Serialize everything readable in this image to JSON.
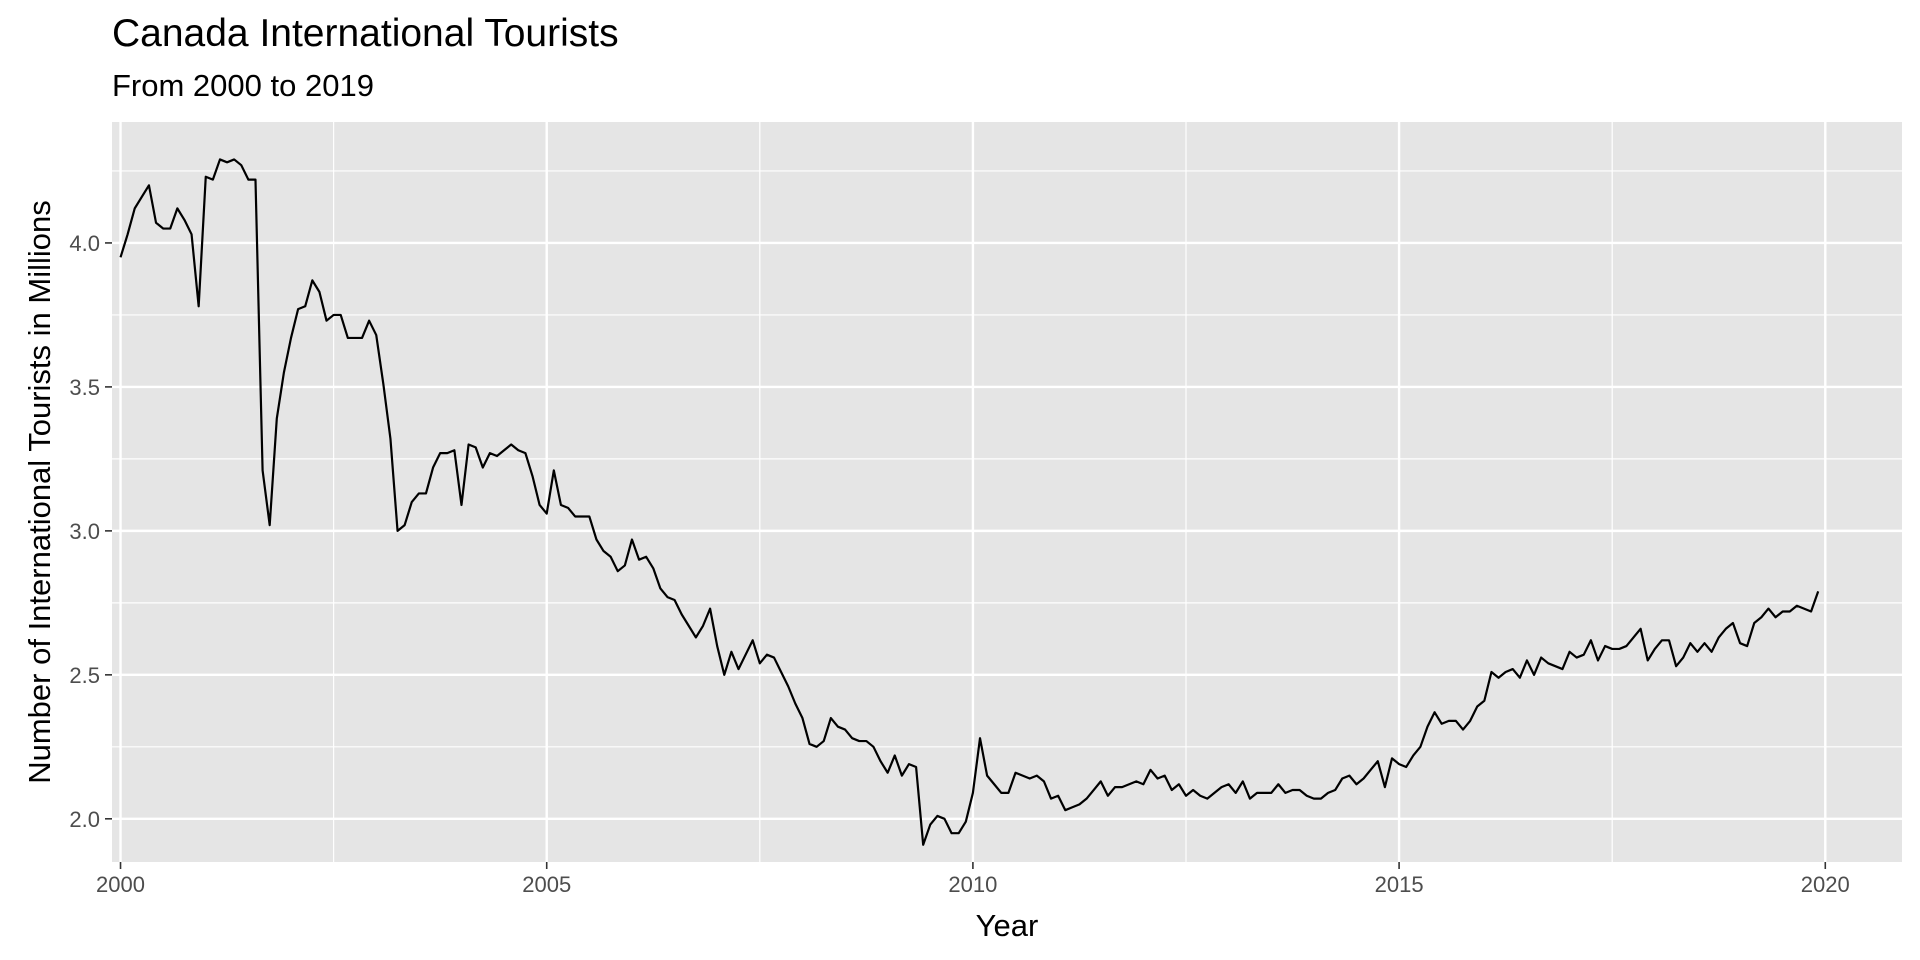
{
  "chart_data": {
    "type": "line",
    "title": "Canada International Tourists",
    "subtitle": "From 2000 to 2019",
    "xlabel": "Year",
    "ylabel": "Number of International Tourists in Millions",
    "xlim": [
      1999.9,
      2020.9
    ],
    "ylim": [
      1.85,
      4.42
    ],
    "x_ticks": [
      2000,
      2005,
      2010,
      2015,
      2020
    ],
    "y_ticks": [
      2.0,
      2.5,
      3.0,
      3.5,
      4.0
    ],
    "x_tick_labels": [
      "2000",
      "2005",
      "2010",
      "2015",
      "2020"
    ],
    "y_tick_labels": [
      "2.0",
      "2.5",
      "3.0",
      "3.5",
      "4.0"
    ],
    "grid": true,
    "background": "#e5e5e5",
    "grid_color": "#ffffff",
    "line_color": "#000000",
    "series": [
      {
        "points": [
          [
            "2000-01",
            3.95
          ],
          [
            "2000-02",
            4.03
          ],
          [
            "2000-03",
            4.12
          ],
          [
            "2000-04",
            4.16
          ],
          [
            "2000-05",
            4.2
          ],
          [
            "2000-06",
            4.07
          ],
          [
            "2000-07",
            4.05
          ],
          [
            "2000-08",
            4.05
          ],
          [
            "2000-09",
            4.12
          ],
          [
            "2000-10",
            4.08
          ],
          [
            "2000-11",
            4.03
          ],
          [
            "2000-12",
            3.78
          ],
          [
            "2001-01",
            4.23
          ],
          [
            "2001-02",
            4.22
          ],
          [
            "2001-03",
            4.29
          ],
          [
            "2001-04",
            4.28
          ],
          [
            "2001-05",
            4.29
          ],
          [
            "2001-06",
            4.27
          ],
          [
            "2001-07",
            4.22
          ],
          [
            "2001-08",
            4.22
          ],
          [
            "2001-09",
            3.21
          ],
          [
            "2001-10",
            3.02
          ],
          [
            "2001-11",
            3.39
          ],
          [
            "2001-12",
            3.55
          ],
          [
            "2002-01",
            3.67
          ],
          [
            "2002-02",
            3.77
          ],
          [
            "2002-03",
            3.78
          ],
          [
            "2002-04",
            3.87
          ],
          [
            "2002-05",
            3.83
          ],
          [
            "2002-06",
            3.73
          ],
          [
            "2002-07",
            3.75
          ],
          [
            "2002-08",
            3.75
          ],
          [
            "2002-09",
            3.67
          ],
          [
            "2002-10",
            3.67
          ],
          [
            "2002-11",
            3.67
          ],
          [
            "2002-12",
            3.73
          ],
          [
            "2003-01",
            3.68
          ],
          [
            "2003-02",
            3.51
          ],
          [
            "2003-03",
            3.32
          ],
          [
            "2003-04",
            3.0
          ],
          [
            "2003-05",
            3.02
          ],
          [
            "2003-06",
            3.1
          ],
          [
            "2003-07",
            3.13
          ],
          [
            "2003-08",
            3.13
          ],
          [
            "2003-09",
            3.22
          ],
          [
            "2003-10",
            3.27
          ],
          [
            "2003-11",
            3.27
          ],
          [
            "2003-12",
            3.28
          ],
          [
            "2004-01",
            3.09
          ],
          [
            "2004-02",
            3.3
          ],
          [
            "2004-03",
            3.29
          ],
          [
            "2004-04",
            3.22
          ],
          [
            "2004-05",
            3.27
          ],
          [
            "2004-06",
            3.26
          ],
          [
            "2004-07",
            3.28
          ],
          [
            "2004-08",
            3.3
          ],
          [
            "2004-09",
            3.28
          ],
          [
            "2004-10",
            3.27
          ],
          [
            "2004-11",
            3.19
          ],
          [
            "2004-12",
            3.09
          ],
          [
            "2005-01",
            3.06
          ],
          [
            "2005-02",
            3.21
          ],
          [
            "2005-03",
            3.09
          ],
          [
            "2005-04",
            3.08
          ],
          [
            "2005-05",
            3.05
          ],
          [
            "2005-06",
            3.05
          ],
          [
            "2005-07",
            3.05
          ],
          [
            "2005-08",
            2.97
          ],
          [
            "2005-09",
            2.93
          ],
          [
            "2005-10",
            2.91
          ],
          [
            "2005-11",
            2.86
          ],
          [
            "2005-12",
            2.88
          ],
          [
            "2006-01",
            2.97
          ],
          [
            "2006-02",
            2.9
          ],
          [
            "2006-03",
            2.91
          ],
          [
            "2006-04",
            2.87
          ],
          [
            "2006-05",
            2.8
          ],
          [
            "2006-06",
            2.77
          ],
          [
            "2006-07",
            2.76
          ],
          [
            "2006-08",
            2.71
          ],
          [
            "2006-09",
            2.67
          ],
          [
            "2006-10",
            2.63
          ],
          [
            "2006-11",
            2.67
          ],
          [
            "2006-12",
            2.73
          ],
          [
            "2007-01",
            2.6
          ],
          [
            "2007-02",
            2.5
          ],
          [
            "2007-03",
            2.58
          ],
          [
            "2007-04",
            2.52
          ],
          [
            "2007-05",
            2.57
          ],
          [
            "2007-06",
            2.62
          ],
          [
            "2007-07",
            2.54
          ],
          [
            "2007-08",
            2.57
          ],
          [
            "2007-09",
            2.56
          ],
          [
            "2007-10",
            2.51
          ],
          [
            "2007-11",
            2.46
          ],
          [
            "2007-12",
            2.4
          ],
          [
            "2008-01",
            2.35
          ],
          [
            "2008-02",
            2.26
          ],
          [
            "2008-03",
            2.25
          ],
          [
            "2008-04",
            2.27
          ],
          [
            "2008-05",
            2.35
          ],
          [
            "2008-06",
            2.32
          ],
          [
            "2008-07",
            2.31
          ],
          [
            "2008-08",
            2.28
          ],
          [
            "2008-09",
            2.27
          ],
          [
            "2008-10",
            2.27
          ],
          [
            "2008-11",
            2.25
          ],
          [
            "2008-12",
            2.2
          ],
          [
            "2009-01",
            2.16
          ],
          [
            "2009-02",
            2.22
          ],
          [
            "2009-03",
            2.15
          ],
          [
            "2009-04",
            2.19
          ],
          [
            "2009-05",
            2.18
          ],
          [
            "2009-06",
            1.91
          ],
          [
            "2009-07",
            1.98
          ],
          [
            "2009-08",
            2.01
          ],
          [
            "2009-09",
            2.0
          ],
          [
            "2009-10",
            1.95
          ],
          [
            "2009-11",
            1.95
          ],
          [
            "2009-12",
            1.99
          ],
          [
            "2010-01",
            2.09
          ],
          [
            "2010-02",
            2.28
          ],
          [
            "2010-03",
            2.15
          ],
          [
            "2010-04",
            2.12
          ],
          [
            "2010-05",
            2.09
          ],
          [
            "2010-06",
            2.09
          ],
          [
            "2010-07",
            2.16
          ],
          [
            "2010-08",
            2.15
          ],
          [
            "2010-09",
            2.14
          ],
          [
            "2010-10",
            2.15
          ],
          [
            "2010-11",
            2.13
          ],
          [
            "2010-12",
            2.07
          ],
          [
            "2011-01",
            2.08
          ],
          [
            "2011-02",
            2.03
          ],
          [
            "2011-03",
            2.04
          ],
          [
            "2011-04",
            2.05
          ],
          [
            "2011-05",
            2.07
          ],
          [
            "2011-06",
            2.1
          ],
          [
            "2011-07",
            2.13
          ],
          [
            "2011-08",
            2.08
          ],
          [
            "2011-09",
            2.11
          ],
          [
            "2011-10",
            2.11
          ],
          [
            "2011-11",
            2.12
          ],
          [
            "2011-12",
            2.13
          ],
          [
            "2012-01",
            2.12
          ],
          [
            "2012-02",
            2.17
          ],
          [
            "2012-03",
            2.14
          ],
          [
            "2012-04",
            2.15
          ],
          [
            "2012-05",
            2.1
          ],
          [
            "2012-06",
            2.12
          ],
          [
            "2012-07",
            2.08
          ],
          [
            "2012-08",
            2.1
          ],
          [
            "2012-09",
            2.08
          ],
          [
            "2012-10",
            2.07
          ],
          [
            "2012-11",
            2.09
          ],
          [
            "2012-12",
            2.11
          ],
          [
            "2013-01",
            2.12
          ],
          [
            "2013-02",
            2.09
          ],
          [
            "2013-03",
            2.13
          ],
          [
            "2013-04",
            2.07
          ],
          [
            "2013-05",
            2.09
          ],
          [
            "2013-06",
            2.09
          ],
          [
            "2013-07",
            2.09
          ],
          [
            "2013-08",
            2.12
          ],
          [
            "2013-09",
            2.09
          ],
          [
            "2013-10",
            2.1
          ],
          [
            "2013-11",
            2.1
          ],
          [
            "2013-12",
            2.08
          ],
          [
            "2014-01",
            2.07
          ],
          [
            "2014-02",
            2.07
          ],
          [
            "2014-03",
            2.09
          ],
          [
            "2014-04",
            2.1
          ],
          [
            "2014-05",
            2.14
          ],
          [
            "2014-06",
            2.15
          ],
          [
            "2014-07",
            2.12
          ],
          [
            "2014-08",
            2.14
          ],
          [
            "2014-09",
            2.17
          ],
          [
            "2014-10",
            2.2
          ],
          [
            "2014-11",
            2.11
          ],
          [
            "2014-12",
            2.21
          ],
          [
            "2015-01",
            2.19
          ],
          [
            "2015-02",
            2.18
          ],
          [
            "2015-03",
            2.22
          ],
          [
            "2015-04",
            2.25
          ],
          [
            "2015-05",
            2.32
          ],
          [
            "2015-06",
            2.37
          ],
          [
            "2015-07",
            2.33
          ],
          [
            "2015-08",
            2.34
          ],
          [
            "2015-09",
            2.34
          ],
          [
            "2015-10",
            2.31
          ],
          [
            "2015-11",
            2.34
          ],
          [
            "2015-12",
            2.39
          ],
          [
            "2016-01",
            2.41
          ],
          [
            "2016-02",
            2.51
          ],
          [
            "2016-03",
            2.49
          ],
          [
            "2016-04",
            2.51
          ],
          [
            "2016-05",
            2.52
          ],
          [
            "2016-06",
            2.49
          ],
          [
            "2016-07",
            2.55
          ],
          [
            "2016-08",
            2.5
          ],
          [
            "2016-09",
            2.56
          ],
          [
            "2016-10",
            2.54
          ],
          [
            "2016-11",
            2.53
          ],
          [
            "2016-12",
            2.52
          ],
          [
            "2017-01",
            2.58
          ],
          [
            "2017-02",
            2.56
          ],
          [
            "2017-03",
            2.57
          ],
          [
            "2017-04",
            2.62
          ],
          [
            "2017-05",
            2.55
          ],
          [
            "2017-06",
            2.6
          ],
          [
            "2017-07",
            2.59
          ],
          [
            "2017-08",
            2.59
          ],
          [
            "2017-09",
            2.6
          ],
          [
            "2017-10",
            2.63
          ],
          [
            "2017-11",
            2.66
          ],
          [
            "2017-12",
            2.55
          ],
          [
            "2018-01",
            2.59
          ],
          [
            "2018-02",
            2.62
          ],
          [
            "2018-03",
            2.62
          ],
          [
            "2018-04",
            2.53
          ],
          [
            "2018-05",
            2.56
          ],
          [
            "2018-06",
            2.61
          ],
          [
            "2018-07",
            2.58
          ],
          [
            "2018-08",
            2.61
          ],
          [
            "2018-09",
            2.58
          ],
          [
            "2018-10",
            2.63
          ],
          [
            "2018-11",
            2.66
          ],
          [
            "2018-12",
            2.68
          ],
          [
            "2019-01",
            2.61
          ],
          [
            "2019-02",
            2.6
          ],
          [
            "2019-03",
            2.68
          ],
          [
            "2019-04",
            2.7
          ],
          [
            "2019-05",
            2.73
          ],
          [
            "2019-06",
            2.7
          ],
          [
            "2019-07",
            2.72
          ],
          [
            "2019-08",
            2.72
          ],
          [
            "2019-09",
            2.74
          ],
          [
            "2019-10",
            2.73
          ],
          [
            "2019-11",
            2.72
          ],
          [
            "2019-12",
            2.79
          ]
        ]
      }
    ]
  }
}
